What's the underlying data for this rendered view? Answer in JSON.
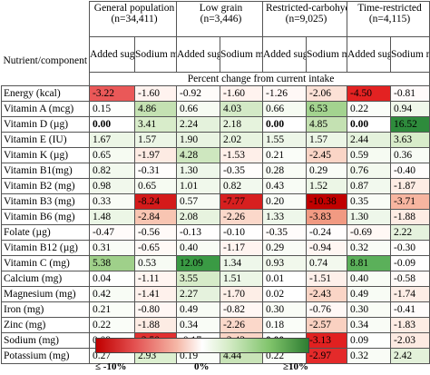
{
  "header": {
    "nutrient_label": "Nutrient/component",
    "groups": [
      {
        "name": "General population",
        "n": "(n=34,411)"
      },
      {
        "name": "Low grain",
        "n": "(n=3,446)"
      },
      {
        "name": "Restricted-carbohydrate",
        "n": "(n=9,025)"
      },
      {
        "name": "Time-restricted",
        "n": "(n=4,115)"
      }
    ],
    "sub_added": "Added sugar model",
    "sub_sodium": "Sodium model",
    "span_label": "Percent change from current intake"
  },
  "rows": [
    {
      "nutrient": "Energy (kcal)",
      "values": [
        "-3.22",
        "-1.60",
        "-0.92",
        "-1.60",
        "-1.26",
        "-2.06",
        "-4.50",
        "-0.81"
      ],
      "colors": [
        "#ea5858",
        "#fff3ef",
        "#fefcfa",
        "#fff3ef",
        "#fff8f6",
        "#fce1d6",
        "#e32222",
        "#fffafa"
      ]
    },
    {
      "nutrient": "Vitamin A (mcg)",
      "values": [
        "0.15",
        "4.86",
        "0.66",
        "4.03",
        "0.66",
        "6.53",
        "0.22",
        "0.94"
      ],
      "colors": [
        "#fdfefc",
        "#c4e1b2",
        "#f6fbf2",
        "#d3e9c6",
        "#f6fbf2",
        "#a3d38f",
        "#fafdf8",
        "#f0f8eb"
      ]
    },
    {
      "nutrient": "Vitamin D (µg)",
      "values": [
        "0.00",
        "3.41",
        "2.24",
        "2.18",
        "0.00",
        "4.85",
        "0.00",
        "16.52"
      ],
      "colors": [
        "#ffffff",
        "#d8ecca",
        "#e4f2dc",
        "#e6f3dd",
        "#ffffff",
        "#c4e1b2",
        "#ffffff",
        "#2e8b3c"
      ]
    },
    {
      "nutrient": "Vitamin E (IU)",
      "values": [
        "1.67",
        "1.57",
        "1.90",
        "2.02",
        "1.55",
        "1.57",
        "2.44",
        "3.63"
      ],
      "colors": [
        "#ecf6e6",
        "#ecf6e6",
        "#e9f4e2",
        "#e8f4e0",
        "#edf6e8",
        "#ecf6e6",
        "#e4f2dc",
        "#d8ecca"
      ]
    },
    {
      "nutrient": "Vitamin K (µg)",
      "values": [
        "0.65",
        "-1.97",
        "4.28",
        "-1.53",
        "0.21",
        "-2.45",
        "0.59",
        "0.36"
      ],
      "colors": [
        "#f6fbf2",
        "#fdebe3",
        "#cee7bf",
        "#feefe9",
        "#fafdf8",
        "#fad5c6",
        "#f6fbf2",
        "#f8fcf5"
      ]
    },
    {
      "nutrient": "Vitamin B1(mg)",
      "values": [
        "0.82",
        "-0.31",
        "1.30",
        "-0.35",
        "0.28",
        "0.29",
        "0.76",
        "-0.40"
      ],
      "colors": [
        "#f2f9ee",
        "#fffdfc",
        "#eef7ea",
        "#fffdfc",
        "#f9fcf6",
        "#f9fcf6",
        "#f3f9ee",
        "#fffcfb"
      ]
    },
    {
      "nutrient": "Vitamin B2 (mg)",
      "values": [
        "0.98",
        "0.65",
        "1.01",
        "0.82",
        "0.43",
        "1.52",
        "0.87",
        "-1.87"
      ],
      "colors": [
        "#f1f8ec",
        "#f6fbf2",
        "#f0f8eb",
        "#f2f9ee",
        "#f8fcf5",
        "#ecf6e6",
        "#f2f9ee",
        "#fdece4"
      ]
    },
    {
      "nutrient": "Vitamin B3 (mg)",
      "values": [
        "0.33",
        "-8.24",
        "0.57",
        "-7.77",
        "0.20",
        "-10.38",
        "0.35",
        "-3.71"
      ],
      "colors": [
        "#f9fcf6",
        "#d41a1a",
        "#f7fbf4",
        "#d71f1f",
        "#fafdf8",
        "#c00000",
        "#f9fcf6",
        "#f7b5a0"
      ]
    },
    {
      "nutrient": "Vitamin B6 (mg)",
      "values": [
        "1.48",
        "-2.84",
        "2.08",
        "-2.26",
        "1.33",
        "-3.83",
        "1.30",
        "-1.88"
      ],
      "colors": [
        "#ecf6e6",
        "#f8c5b2",
        "#e7f3df",
        "#fbd8ca",
        "#eef7ea",
        "#f19a82",
        "#eef7ea",
        "#fdece4"
      ]
    },
    {
      "nutrient": "Folate (µg)",
      "values": [
        "-0.47",
        "-0.56",
        "-0.13",
        "-0.10",
        "-0.35",
        "-0.24",
        "-0.69",
        "2.22"
      ],
      "colors": [
        "#fffbfa",
        "#fffaf8",
        "#fffefe",
        "#fffefe",
        "#fffcfb",
        "#fffdfd",
        "#fff8f5",
        "#e5f2dd"
      ]
    },
    {
      "nutrient": "Vitamin B12 (µg)",
      "values": [
        "0.31",
        "-0.65",
        "0.40",
        "-1.17",
        "0.29",
        "-0.94",
        "0.32",
        "-0.30"
      ],
      "colors": [
        "#f9fcf6",
        "#fff9f6",
        "#f8fcf5",
        "#fff4f0",
        "#f9fcf6",
        "#fff6f2",
        "#f9fcf6",
        "#fffdfc"
      ]
    },
    {
      "nutrient": "Vitamin C (mg)",
      "values": [
        "5.38",
        "0.53",
        "12.09",
        "1.34",
        "0.93",
        "0.74",
        "8.81",
        "-0.09"
      ],
      "colors": [
        "#9fd08a",
        "#f7fbf4",
        "#3a9a44",
        "#eef7ea",
        "#f1f8ec",
        "#f3f9ee",
        "#5bb05a",
        "#fffefe"
      ]
    },
    {
      "nutrient": "Calcium (mg)",
      "values": [
        "0.04",
        "-1.11",
        "3.55",
        "1.51",
        "0.01",
        "-1.51",
        "0.40",
        "-0.58"
      ],
      "colors": [
        "#fefffe",
        "#fff5f1",
        "#d6ebc8",
        "#ecf6e6",
        "#ffffff",
        "#fef0ea",
        "#f8fcf5",
        "#fffaf8"
      ]
    },
    {
      "nutrient": "Magnesium (mg)",
      "values": [
        "0.42",
        "-1.41",
        "2.27",
        "-1.70",
        "0.02",
        "-2.43",
        "0.49",
        "-1.74"
      ],
      "colors": [
        "#f8fcf5",
        "#fef1ec",
        "#e5f2dd",
        "#fdeee7",
        "#ffffff",
        "#fad5c6",
        "#f8fcf5",
        "#fdede6"
      ]
    },
    {
      "nutrient": "Iron (mg)",
      "values": [
        "0.21",
        "-0.80",
        "0.49",
        "-0.82",
        "0.30",
        "-0.76",
        "0.30",
        "-0.41"
      ],
      "colors": [
        "#fafdf8",
        "#fff7f4",
        "#f8fcf5",
        "#fff7f4",
        "#f9fcf6",
        "#fff8f5",
        "#f9fcf6",
        "#fffcfb"
      ]
    },
    {
      "nutrient": "Zinc (mg)",
      "values": [
        "0.22",
        "-1.88",
        "0.34",
        "-2.26",
        "0.18",
        "-2.57",
        "0.34",
        "-1.83"
      ],
      "colors": [
        "#fafdf8",
        "#fdece4",
        "#f9fcf6",
        "#fbd8ca",
        "#fafdf8",
        "#fad1c1",
        "#f9fcf6",
        "#fdece4"
      ]
    },
    {
      "nutrient": "Sodium (mg)",
      "values": [
        "0.09",
        "-2.50",
        "-0.17",
        "-2.43",
        "0.00",
        "-3.13",
        "0.09",
        "-2.03"
      ],
      "colors": [
        "#fefffe",
        "#e23030",
        "#fffefe",
        "#fad5c6",
        "#ffffff",
        "#e12020",
        "#fefffe",
        "#fdeae2"
      ]
    },
    {
      "nutrient": "Potassium (mg)",
      "values": [
        "0.27",
        "2.93",
        "0.19",
        "4.44",
        "0.22",
        "-2.97",
        "0.32",
        "2.42"
      ],
      "colors": [
        "#f9fcf6",
        "#dcefd0",
        "#fafdf8",
        "#c9e4b8",
        "#fafdf8",
        "#e42a2a",
        "#f9fcf6",
        "#e3f1da"
      ]
    }
  ],
  "legend": {
    "low": "≤ -10%",
    "mid": "0%",
    "high": "≥10%"
  }
}
